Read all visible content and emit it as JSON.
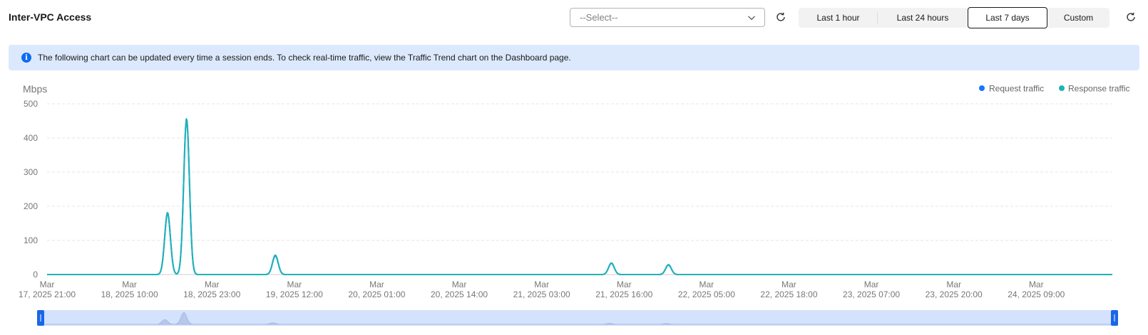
{
  "header": {
    "title": "Inter-VPC Access",
    "select_placeholder": "--Select--",
    "time_ranges": [
      "Last 1 hour",
      "Last 24 hours",
      "Last 7 days",
      "Custom"
    ],
    "active_range": "Last 7 days"
  },
  "notice": {
    "icon": "info-icon",
    "text": "The following chart can be updated every time a session ends. To check real-time traffic, view the Traffic Trend chart on the Dashboard page."
  },
  "colors": {
    "request": "#1677ff",
    "response": "#1fb3b5",
    "accent": "#0c6cf2",
    "notice_bg": "#dce9fd"
  },
  "chart_data": {
    "type": "line",
    "ylabel": "Mbps",
    "ylim": [
      0,
      500
    ],
    "yticks": [
      0,
      100,
      200,
      300,
      400,
      500
    ],
    "x_range": [
      "2025-03-17 21:00",
      "2025-03-24 21:00"
    ],
    "x_tick_labels": [
      [
        "Mar",
        "17, 2025 21:00"
      ],
      [
        "Mar",
        "18, 2025 10:00"
      ],
      [
        "Mar",
        "18, 2025 23:00"
      ],
      [
        "Mar",
        "19, 2025 12:00"
      ],
      [
        "Mar",
        "20, 2025 01:00"
      ],
      [
        "Mar",
        "20, 2025 14:00"
      ],
      [
        "Mar",
        "21, 2025 03:00"
      ],
      [
        "Mar",
        "21, 2025 16:00"
      ],
      [
        "Mar",
        "22, 2025 05:00"
      ],
      [
        "Mar",
        "22, 2025 18:00"
      ],
      [
        "Mar",
        "23, 2025 07:00"
      ],
      [
        "Mar",
        "23, 2025 20:00"
      ],
      [
        "Mar",
        "24, 2025 09:00"
      ]
    ],
    "legend": [
      "Request traffic",
      "Response traffic"
    ],
    "legend_position": "top-right",
    "grid": true,
    "series": [
      {
        "name": "Request traffic",
        "peaks": [
          {
            "t": "2025-03-18 16:00",
            "v": 180
          },
          {
            "t": "2025-03-18 19:00",
            "v": 455
          },
          {
            "t": "2025-03-19 09:00",
            "v": 55
          },
          {
            "t": "2025-03-21 14:00",
            "v": 33
          },
          {
            "t": "2025-03-21 23:00",
            "v": 28
          }
        ]
      },
      {
        "name": "Response traffic",
        "peaks": [
          {
            "t": "2025-03-18 16:00",
            "v": 182
          },
          {
            "t": "2025-03-18 19:00",
            "v": 458
          },
          {
            "t": "2025-03-19 09:00",
            "v": 57
          },
          {
            "t": "2025-03-21 14:00",
            "v": 34
          },
          {
            "t": "2025-03-21 23:00",
            "v": 29
          }
        ]
      }
    ]
  }
}
